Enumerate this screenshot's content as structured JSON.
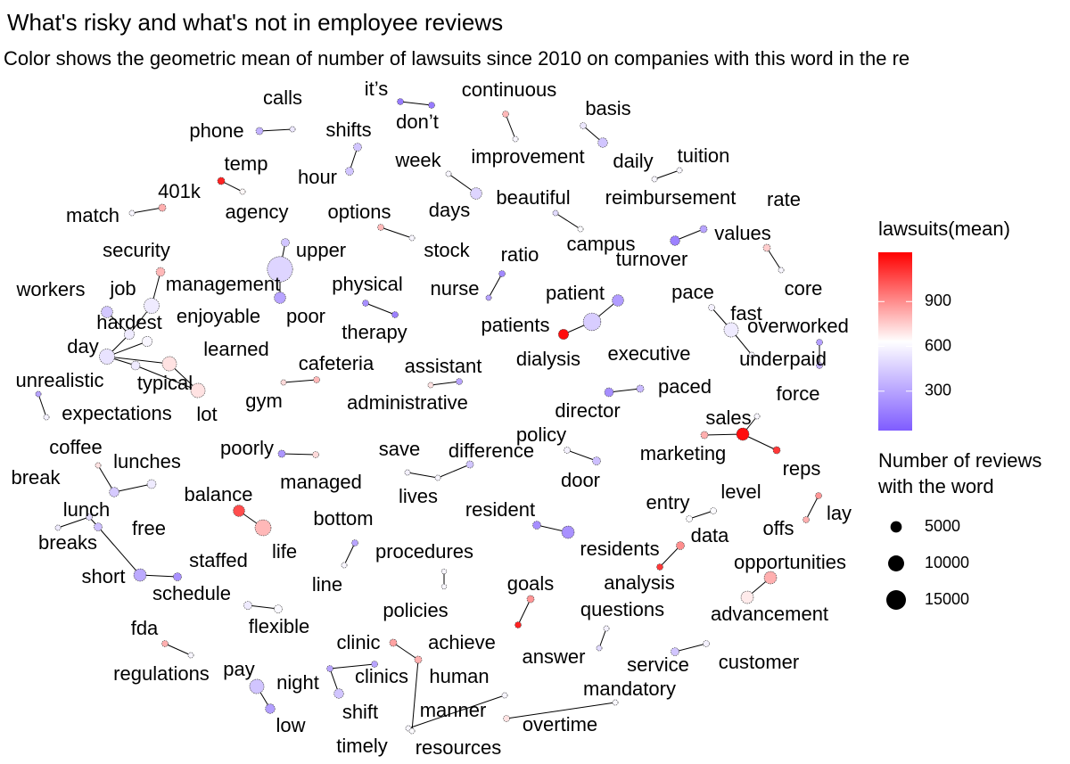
{
  "chart_data": {
    "type": "network",
    "title": "What's risky and what's not in employee reviews",
    "subtitle": "Color shows the geometric mean of number of lawsuits since 2010 on companies with this word in the re",
    "color_legend_title": "lawsuits(mean)",
    "size_legend_title": [
      "Number of reviews",
      "with the word"
    ],
    "color_low": "#7f5cff",
    "color_mid": "#ffffff",
    "color_high": "#ff0000",
    "clim": [
      36,
      1230
    ],
    "cticks": [
      300,
      600,
      900
    ],
    "size_ticks": [
      5000,
      10000,
      15000
    ],
    "edge_color": "#000000",
    "nodes": [
      {
        "label": "calls",
        "lawsuits": 550,
        "reviews": 1200
      },
      {
        "label": "phone",
        "lawsuits": 350,
        "reviews": 2000
      },
      {
        "label": "it’s",
        "lawsuits": 150,
        "reviews": 1500
      },
      {
        "label": "don’t",
        "lawsuits": 150,
        "reviews": 1500
      },
      {
        "label": "continuous",
        "lawsuits": 800,
        "reviews": 1500
      },
      {
        "label": "improvement",
        "lawsuits": 600,
        "reviews": 1200
      },
      {
        "label": "basis",
        "lawsuits": 550,
        "reviews": 1500
      },
      {
        "label": "daily",
        "lawsuits": 420,
        "reviews": 3500
      },
      {
        "label": "tuition",
        "lawsuits": 600,
        "reviews": 1200
      },
      {
        "label": "reimbursement",
        "lawsuits": 600,
        "reviews": 1200
      },
      {
        "label": "shifts",
        "lawsuits": 420,
        "reviews": 2500
      },
      {
        "label": "hour",
        "lawsuits": 420,
        "reviews": 2500
      },
      {
        "label": "temp",
        "lawsuits": 1150,
        "reviews": 2000
      },
      {
        "label": "agency",
        "lawsuits": 650,
        "reviews": 1200
      },
      {
        "label": "week",
        "lawsuits": 600,
        "reviews": 1200
      },
      {
        "label": "days",
        "lawsuits": 480,
        "reviews": 5000
      },
      {
        "label": "401k",
        "lawsuits": 820,
        "reviews": 2000
      },
      {
        "label": "match",
        "lawsuits": 600,
        "reviews": 1200
      },
      {
        "label": "options",
        "lawsuits": 800,
        "reviews": 1500
      },
      {
        "label": "stock",
        "lawsuits": 600,
        "reviews": 1200
      },
      {
        "label": "beautiful",
        "lawsuits": 500,
        "reviews": 1200
      },
      {
        "label": "campus",
        "lawsuits": 620,
        "reviews": 1200
      },
      {
        "label": "rate",
        "lawsuits": 300,
        "reviews": 2000
      },
      {
        "label": "turnover",
        "lawsuits": 170,
        "reviews": 3500
      },
      {
        "label": "values",
        "lawsuits": 750,
        "reviews": 2000
      },
      {
        "label": "core",
        "lawsuits": 600,
        "reviews": 1200
      },
      {
        "label": "security",
        "lawsuits": 800,
        "reviews": 3000
      },
      {
        "label": "upper",
        "lawsuits": 420,
        "reviews": 2500
      },
      {
        "label": "management",
        "lawsuits": 480,
        "reviews": 25000
      },
      {
        "label": "poor",
        "lawsuits": 300,
        "reviews": 5000
      },
      {
        "label": "ratio",
        "lawsuits": 200,
        "reviews": 1500
      },
      {
        "label": "nurse",
        "lawsuits": 300,
        "reviews": 1200
      },
      {
        "label": "physical",
        "lawsuits": 220,
        "reviews": 1500
      },
      {
        "label": "therapy",
        "lawsuits": 170,
        "reviews": 1500
      },
      {
        "label": "patient",
        "lawsuits": 270,
        "reviews": 5000
      },
      {
        "label": "patients",
        "lawsuits": 450,
        "reviews": 12000
      },
      {
        "label": "dialysis",
        "lawsuits": 1200,
        "reviews": 4000
      },
      {
        "label": "pace",
        "lawsuits": 580,
        "reviews": 1500
      },
      {
        "label": "fast",
        "lawsuits": 560,
        "reviews": 8000
      },
      {
        "label": "paced",
        "lawsuits": 600,
        "reviews": 1200
      },
      {
        "label": "overworked",
        "lawsuits": 280,
        "reviews": 1500
      },
      {
        "label": "underpaid",
        "lawsuits": 350,
        "reviews": 1500
      },
      {
        "label": "executive",
        "lawsuits": 380,
        "reviews": 2000
      },
      {
        "label": "director",
        "lawsuits": 220,
        "reviews": 3000
      },
      {
        "label": "administrative",
        "lawsuits": 700,
        "reviews": 1200
      },
      {
        "label": "assistant",
        "lawsuits": 300,
        "reviews": 1500
      },
      {
        "label": "cafeteria",
        "lawsuits": 800,
        "reviews": 1500
      },
      {
        "label": "gym",
        "lawsuits": 720,
        "reviews": 1200
      },
      {
        "label": "workers",
        "lawsuits": 430,
        "reviews": 5000
      },
      {
        "label": "job",
        "lawsuits": 560,
        "reviews": 9000
      },
      {
        "label": "hardest",
        "lawsuits": 560,
        "reviews": 4000
      },
      {
        "label": "enjoyable",
        "lawsuits": 600,
        "reviews": 4000
      },
      {
        "label": "day",
        "lawsuits": 530,
        "reviews": 9000
      },
      {
        "label": "learned",
        "lawsuits": 700,
        "reviews": 8000
      },
      {
        "label": "typical",
        "lawsuits": 560,
        "reviews": 3000
      },
      {
        "label": "lot",
        "lawsuits": 700,
        "reviews": 8000
      },
      {
        "label": "unrealistic",
        "lawsuits": 300,
        "reviews": 1200
      },
      {
        "label": "expectations",
        "lawsuits": 580,
        "reviews": 1200
      },
      {
        "label": "sales",
        "lawsuits": 1200,
        "reviews": 6000
      },
      {
        "label": "marketing",
        "lawsuits": 820,
        "reviews": 2000
      },
      {
        "label": "reps",
        "lawsuits": 1100,
        "reviews": 2000
      },
      {
        "label": "force",
        "lawsuits": 600,
        "reviews": 1200
      },
      {
        "label": "policy",
        "lawsuits": 580,
        "reviews": 1500
      },
      {
        "label": "door",
        "lawsuits": 400,
        "reviews": 2500
      },
      {
        "label": "difference",
        "lawsuits": 420,
        "reviews": 2000
      },
      {
        "label": "save",
        "lawsuits": 580,
        "reviews": 1200
      },
      {
        "label": "lives",
        "lawsuits": 600,
        "reviews": 1200
      },
      {
        "label": "poorly",
        "lawsuits": 250,
        "reviews": 2000
      },
      {
        "label": "managed",
        "lawsuits": 720,
        "reviews": 1500
      },
      {
        "label": "coffee",
        "lawsuits": 700,
        "reviews": 1200
      },
      {
        "label": "lunches",
        "lawsuits": 560,
        "reviews": 3000
      },
      {
        "label": "free",
        "lawsuits": 440,
        "reviews": 3500
      },
      {
        "label": "lunch",
        "lawsuits": 500,
        "reviews": 1500
      },
      {
        "label": "break",
        "lawsuits": 560,
        "reviews": 1200
      },
      {
        "label": "breaks",
        "lawsuits": 400,
        "reviews": 2500
      },
      {
        "label": "short",
        "lawsuits": 320,
        "reviews": 6000
      },
      {
        "label": "staffed",
        "lawsuits": 230,
        "reviews": 2500
      },
      {
        "label": "schedule",
        "lawsuits": 560,
        "reviews": 2500
      },
      {
        "label": "flexible",
        "lawsuits": 610,
        "reviews": 2500
      },
      {
        "label": "balance",
        "lawsuits": 1050,
        "reviews": 5000
      },
      {
        "label": "life",
        "lawsuits": 800,
        "reviews": 10000
      },
      {
        "label": "bottom",
        "lawsuits": 300,
        "reviews": 1500
      },
      {
        "label": "line",
        "lawsuits": 600,
        "reviews": 1200
      },
      {
        "label": "procedures",
        "lawsuits": 600,
        "reviews": 1000
      },
      {
        "label": "policies",
        "lawsuits": 600,
        "reviews": 1000
      },
      {
        "label": "resident",
        "lawsuits": 220,
        "reviews": 2500
      },
      {
        "label": "residents",
        "lawsuits": 230,
        "reviews": 6000
      },
      {
        "label": "entry",
        "lawsuits": 620,
        "reviews": 1500
      },
      {
        "label": "level",
        "lawsuits": 620,
        "reviews": 1500
      },
      {
        "label": "data",
        "lawsuits": 900,
        "reviews": 2500
      },
      {
        "label": "analysis",
        "lawsuits": 1100,
        "reviews": 1500
      },
      {
        "label": "lay",
        "lawsuits": 880,
        "reviews": 1500
      },
      {
        "label": "offs",
        "lawsuits": 820,
        "reviews": 1500
      },
      {
        "label": "opportunities",
        "lawsuits": 820,
        "reviews": 6000
      },
      {
        "label": "advancement",
        "lawsuits": 680,
        "reviews": 6000
      },
      {
        "label": "goals",
        "lawsuits": 880,
        "reviews": 2000
      },
      {
        "label": "achieve",
        "lawsuits": 1150,
        "reviews": 1500
      },
      {
        "label": "questions",
        "lawsuits": 580,
        "reviews": 1200
      },
      {
        "label": "answer",
        "lawsuits": 500,
        "reviews": 1200
      },
      {
        "label": "clinic",
        "lawsuits": 850,
        "reviews": 2000
      },
      {
        "label": "human",
        "lawsuits": 820,
        "reviews": 2000
      },
      {
        "label": "clinics",
        "lawsuits": 300,
        "reviews": 1500
      },
      {
        "label": "night",
        "lawsuits": 300,
        "reviews": 1500
      },
      {
        "label": "shift",
        "lawsuits": 420,
        "reviews": 3500
      },
      {
        "label": "pay",
        "lawsuits": 420,
        "reviews": 8000
      },
      {
        "label": "low",
        "lawsuits": 280,
        "reviews": 3500
      },
      {
        "label": "fda",
        "lawsuits": 820,
        "reviews": 1500
      },
      {
        "label": "regulations",
        "lawsuits": 600,
        "reviews": 1200
      },
      {
        "label": "customer",
        "lawsuits": 580,
        "reviews": 1500
      },
      {
        "label": "service",
        "lawsuits": 420,
        "reviews": 2500
      },
      {
        "label": "mandatory",
        "lawsuits": 610,
        "reviews": 1200
      },
      {
        "label": "overtime",
        "lawsuits": 700,
        "reviews": 1500
      },
      {
        "label": "manner",
        "lawsuits": 600,
        "reviews": 1200
      },
      {
        "label": "timely",
        "lawsuits": 600,
        "reviews": 1200
      },
      {
        "label": "resources",
        "lawsuits": 620,
        "reviews": 1200
      }
    ],
    "edges": [
      [
        0,
        1
      ],
      [
        2,
        3
      ],
      [
        4,
        5
      ],
      [
        6,
        7
      ],
      [
        8,
        9
      ],
      [
        10,
        11
      ],
      [
        12,
        13
      ],
      [
        14,
        15
      ],
      [
        16,
        17
      ],
      [
        18,
        19
      ],
      [
        20,
        21
      ],
      [
        22,
        23
      ],
      [
        24,
        25
      ],
      [
        26,
        49
      ],
      [
        27,
        28
      ],
      [
        29,
        28
      ],
      [
        30,
        31
      ],
      [
        32,
        33
      ],
      [
        34,
        35
      ],
      [
        36,
        35
      ],
      [
        37,
        38
      ],
      [
        38,
        39
      ],
      [
        40,
        41
      ],
      [
        42,
        43
      ],
      [
        44,
        45
      ],
      [
        46,
        47
      ],
      [
        48,
        50
      ],
      [
        49,
        50
      ],
      [
        50,
        52
      ],
      [
        51,
        52
      ],
      [
        52,
        53
      ],
      [
        54,
        52
      ],
      [
        53,
        55
      ],
      [
        54,
        55
      ],
      [
        56,
        57
      ],
      [
        58,
        59
      ],
      [
        58,
        60
      ],
      [
        58,
        61
      ],
      [
        62,
        63
      ],
      [
        64,
        66
      ],
      [
        65,
        66
      ],
      [
        67,
        68
      ],
      [
        69,
        71
      ],
      [
        70,
        71
      ],
      [
        72,
        73
      ],
      [
        72,
        74
      ],
      [
        74,
        75
      ],
      [
        75,
        76
      ],
      [
        77,
        78
      ],
      [
        79,
        80
      ],
      [
        81,
        82
      ],
      [
        83,
        84
      ],
      [
        85,
        86
      ],
      [
        87,
        88
      ],
      [
        89,
        90
      ],
      [
        91,
        92
      ],
      [
        93,
        94
      ],
      [
        95,
        96
      ],
      [
        97,
        98
      ],
      [
        99,
        100
      ],
      [
        100,
        114
      ],
      [
        101,
        102
      ],
      [
        102,
        103
      ],
      [
        104,
        105
      ],
      [
        106,
        107
      ],
      [
        108,
        109
      ],
      [
        110,
        111
      ],
      [
        113,
        112
      ]
    ]
  }
}
